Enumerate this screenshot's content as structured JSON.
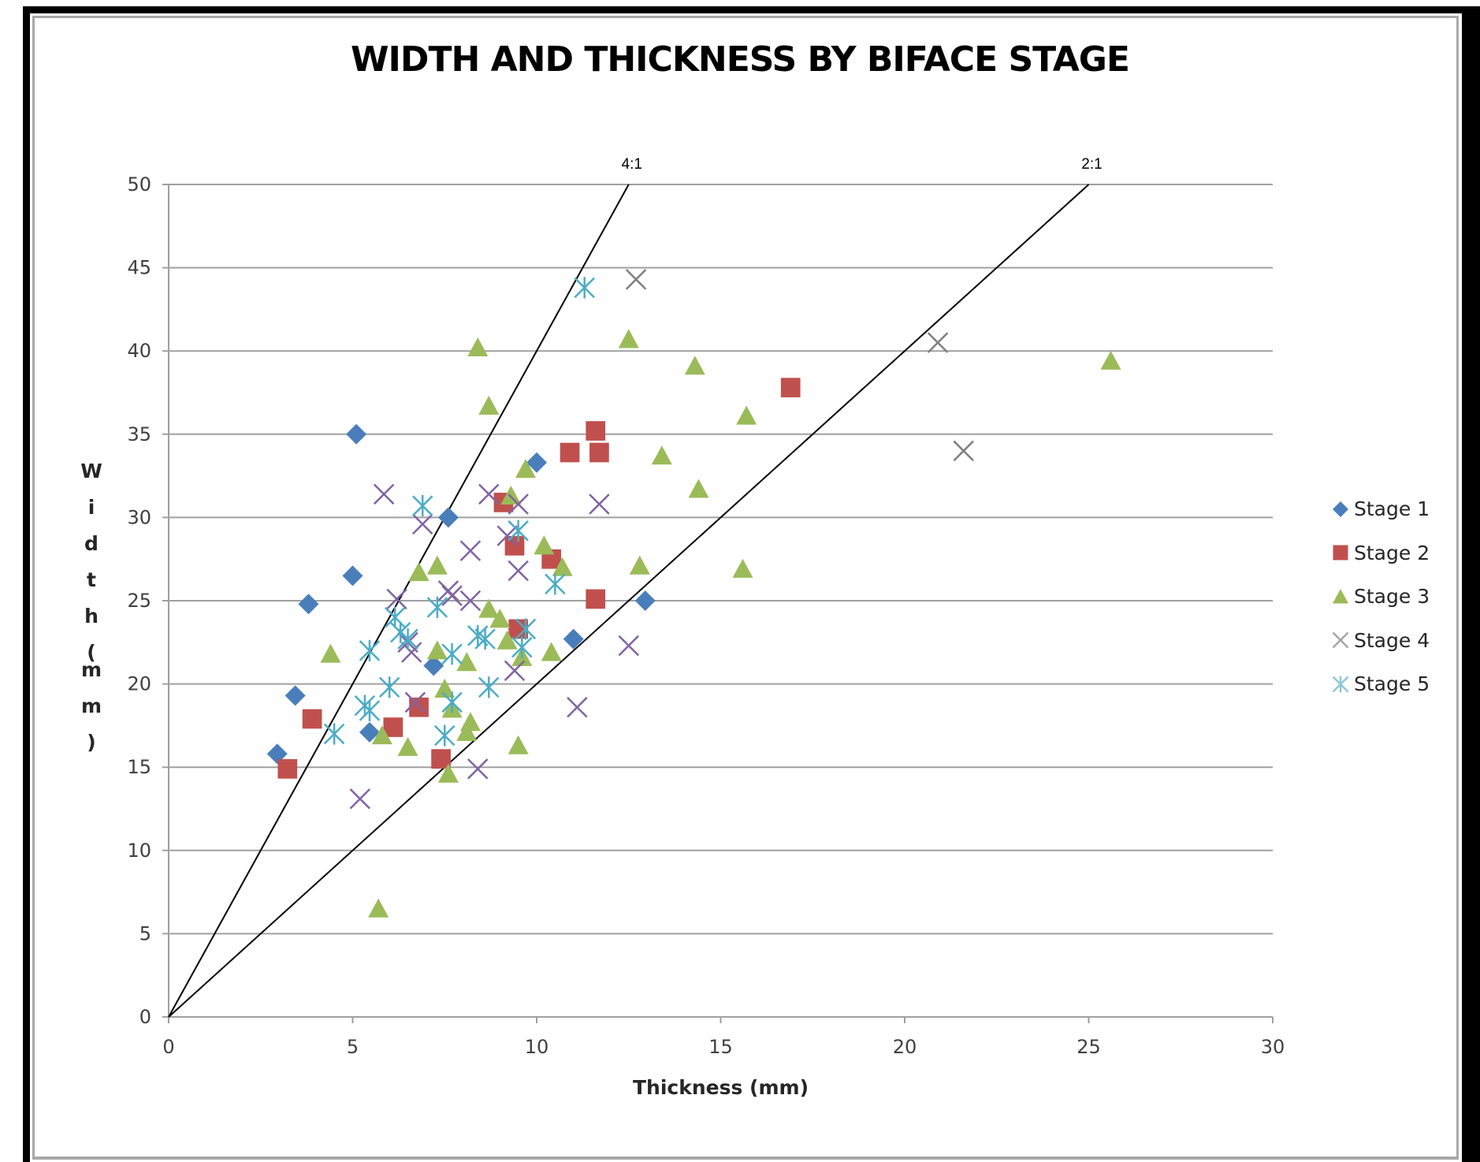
{
  "chart_data": {
    "type": "scatter",
    "title": "WIDTH AND THICKNESS BY BIFACE STAGE",
    "xlabel": "Thickness (mm)",
    "ylabel": "Width (mm)",
    "xlim": [
      0,
      30
    ],
    "ylim": [
      0,
      50
    ],
    "xticks": [
      "0",
      "5",
      "10",
      "15",
      "20",
      "25",
      "30"
    ],
    "yticks": [
      "0",
      "5",
      "10",
      "15",
      "20",
      "25",
      "30",
      "35",
      "40",
      "45",
      "50"
    ],
    "grid": "horizontal",
    "legend_position": "right",
    "reference_lines": [
      {
        "label": "4:1",
        "from": [
          0,
          0
        ],
        "to": [
          12.5,
          50
        ]
      },
      {
        "label": "2:1",
        "from": [
          0,
          0
        ],
        "to": [
          25,
          50
        ]
      }
    ],
    "series": [
      {
        "name": "Stage 1",
        "marker": "diamond",
        "color": "#4a7ebb",
        "points": [
          [
            2.95,
            15.8
          ],
          [
            3.44,
            19.3
          ],
          [
            3.8,
            24.8
          ],
          [
            5.0,
            26.5
          ],
          [
            5.1,
            35.0
          ],
          [
            5.46,
            17.1
          ],
          [
            7.2,
            21.1
          ],
          [
            7.6,
            30.0
          ],
          [
            9.5,
            23.3
          ],
          [
            10.0,
            33.3
          ],
          [
            11.0,
            22.7
          ],
          [
            12.95,
            25.0
          ]
        ]
      },
      {
        "name": "Stage 2",
        "marker": "square",
        "color": "#c0504d",
        "points": [
          [
            3.23,
            14.9
          ],
          [
            3.9,
            17.9
          ],
          [
            6.1,
            17.4
          ],
          [
            6.8,
            18.6
          ],
          [
            7.4,
            15.5
          ],
          [
            9.1,
            30.9
          ],
          [
            9.4,
            28.3
          ],
          [
            9.5,
            23.3
          ],
          [
            10.4,
            27.5
          ],
          [
            10.9,
            33.9
          ],
          [
            11.6,
            35.2
          ],
          [
            11.7,
            33.9
          ],
          [
            11.6,
            25.1
          ],
          [
            16.9,
            37.8
          ]
        ]
      },
      {
        "name": "Stage 3",
        "marker": "triangle",
        "color": "#9bbb59",
        "points": [
          [
            4.4,
            21.8
          ],
          [
            5.8,
            16.9
          ],
          [
            5.7,
            6.5
          ],
          [
            6.5,
            16.2
          ],
          [
            6.8,
            26.7
          ],
          [
            7.3,
            27.1
          ],
          [
            7.3,
            22.0
          ],
          [
            7.5,
            19.7
          ],
          [
            7.6,
            14.6
          ],
          [
            7.7,
            18.5
          ],
          [
            8.1,
            21.3
          ],
          [
            8.2,
            17.7
          ],
          [
            8.1,
            17.1
          ],
          [
            8.4,
            40.2
          ],
          [
            8.7,
            36.7
          ],
          [
            8.7,
            24.5
          ],
          [
            9.0,
            23.9
          ],
          [
            9.2,
            22.6
          ],
          [
            9.3,
            31.3
          ],
          [
            9.5,
            16.3
          ],
          [
            9.6,
            21.6
          ],
          [
            9.7,
            32.9
          ],
          [
            10.2,
            28.3
          ],
          [
            10.4,
            21.9
          ],
          [
            10.7,
            27.0
          ],
          [
            12.5,
            40.7
          ],
          [
            12.8,
            27.1
          ],
          [
            13.4,
            33.7
          ],
          [
            14.3,
            39.1
          ],
          [
            14.4,
            31.7
          ],
          [
            15.7,
            36.1
          ],
          [
            15.6,
            26.9
          ],
          [
            25.6,
            39.4
          ]
        ]
      },
      {
        "name": "Stage 4",
        "marker": "x",
        "color": "#8064a2",
        "points": [
          [
            5.2,
            13.1
          ],
          [
            5.85,
            31.4
          ],
          [
            6.2,
            25.1
          ],
          [
            6.5,
            22.5
          ],
          [
            6.6,
            21.9
          ],
          [
            6.9,
            29.6
          ],
          [
            6.7,
            18.9
          ],
          [
            7.6,
            25.6
          ],
          [
            7.7,
            25.3
          ],
          [
            8.2,
            25.0
          ],
          [
            8.2,
            28.0
          ],
          [
            8.4,
            14.9
          ],
          [
            8.7,
            31.4
          ],
          [
            9.2,
            28.9
          ],
          [
            9.5,
            26.8
          ],
          [
            9.4,
            20.8
          ],
          [
            9.5,
            30.8
          ],
          [
            11.1,
            18.6
          ],
          [
            11.7,
            30.8
          ],
          [
            12.5,
            22.3
          ],
          [
            12.7,
            44.3
          ],
          [
            20.9,
            40.5
          ],
          [
            21.6,
            34.0
          ]
        ]
      },
      {
        "name": "Stage 5",
        "marker": "asterisk",
        "color": "#4bacc6",
        "points": [
          [
            4.5,
            17.0
          ],
          [
            5.46,
            22.0
          ],
          [
            5.33,
            18.7
          ],
          [
            5.46,
            18.4
          ],
          [
            6.0,
            19.8
          ],
          [
            6.15,
            24.0
          ],
          [
            6.3,
            23.1
          ],
          [
            6.5,
            22.7
          ],
          [
            6.9,
            30.7
          ],
          [
            7.3,
            24.6
          ],
          [
            7.5,
            16.9
          ],
          [
            7.7,
            21.8
          ],
          [
            7.7,
            18.9
          ],
          [
            8.4,
            22.9
          ],
          [
            8.6,
            22.7
          ],
          [
            8.7,
            19.8
          ],
          [
            9.5,
            29.2
          ],
          [
            9.6,
            22.2
          ],
          [
            9.7,
            23.3
          ],
          [
            10.5,
            26.0
          ],
          [
            11.3,
            43.8
          ]
        ]
      }
    ]
  },
  "legend_marker_colors": {
    "Stage 4": "#a6a6a6",
    "Stage 5": "#8fc7d8"
  }
}
